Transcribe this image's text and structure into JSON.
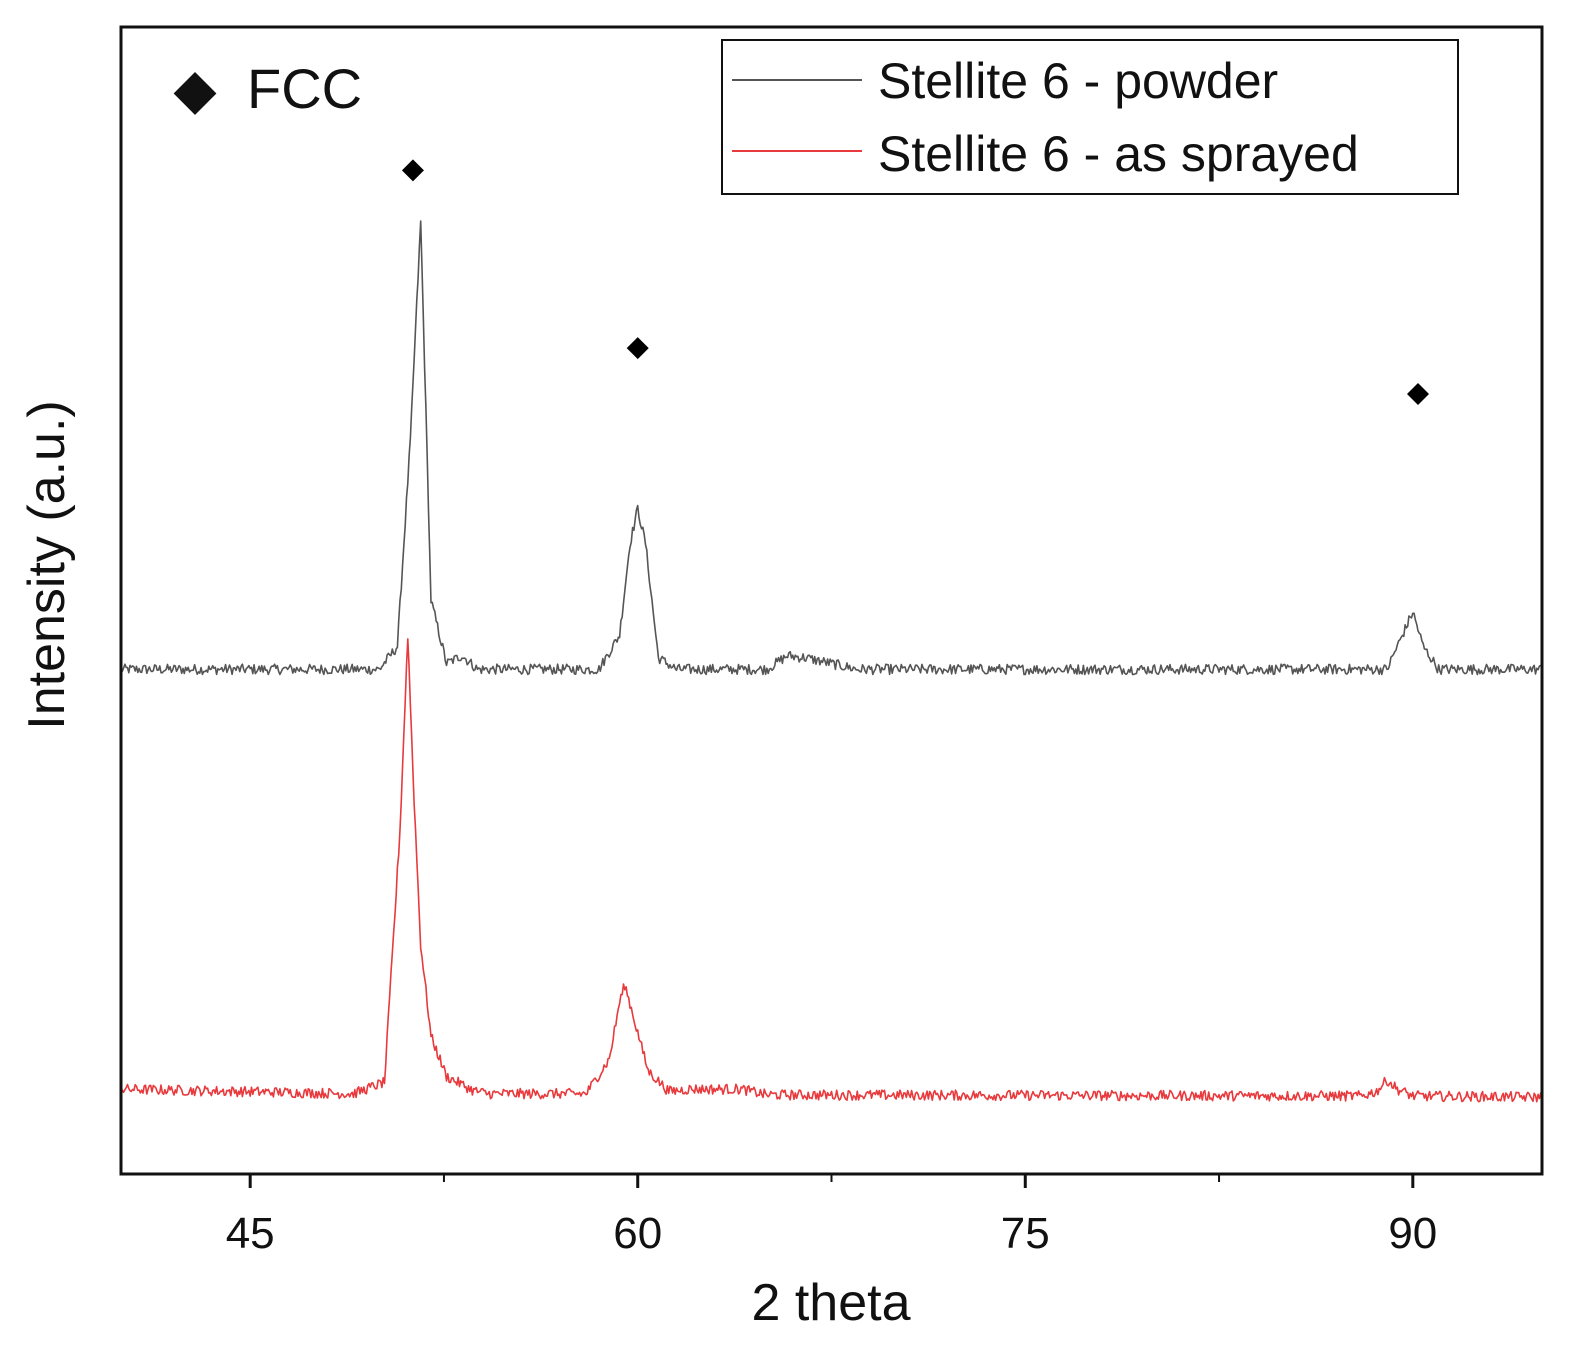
{
  "chart_data": {
    "type": "line",
    "title": "",
    "xlabel": "2 theta",
    "ylabel": "Intensity (a.u.)",
    "xlim": [
      40,
      95
    ],
    "ylim": [
      0,
      1
    ],
    "x_ticks": [
      45,
      60,
      75,
      90
    ],
    "x_minor_ticks": [
      52.5,
      67.5,
      82.5
    ],
    "y_ticks_shown": false,
    "grid": false,
    "legend_position": "top-right",
    "series": [
      {
        "name": "Stellite 6 - powder",
        "color": "#555555",
        "baseline": 0.44,
        "x": [
          40,
          50.0,
          50.7,
          51.2,
          51.6,
          52.0,
          52.6,
          53.2,
          53.8,
          58.5,
          59.3,
          59.7,
          60.0,
          60.3,
          60.8,
          61.5,
          65.0,
          65.8,
          66.5,
          68.5,
          69.5,
          89.0,
          89.6,
          90.0,
          90.4,
          91.0,
          95
        ],
        "y": [
          0.44,
          0.44,
          0.46,
          0.64,
          0.83,
          0.5,
          0.445,
          0.452,
          0.44,
          0.44,
          0.47,
          0.55,
          0.58,
          0.55,
          0.45,
          0.44,
          0.44,
          0.452,
          0.45,
          0.44,
          0.44,
          0.44,
          0.47,
          0.49,
          0.46,
          0.44,
          0.44
        ]
      },
      {
        "name": "Stellite 6 - as sprayed",
        "color": "#e8393c",
        "baseline": 0.07,
        "x": [
          40,
          49.0,
          50.2,
          50.8,
          51.1,
          51.3,
          51.6,
          52.0,
          52.6,
          53.2,
          53.6,
          54.2,
          58.0,
          58.9,
          59.3,
          59.5,
          59.8,
          60.4,
          61.2,
          62.0,
          64.0,
          65.0,
          88.0,
          88.6,
          89.0,
          89.4,
          90.0,
          95
        ],
        "y": [
          0.074,
          0.07,
          0.08,
          0.3,
          0.47,
          0.35,
          0.2,
          0.12,
          0.085,
          0.078,
          0.073,
          0.07,
          0.07,
          0.1,
          0.15,
          0.165,
          0.14,
          0.09,
          0.072,
          0.074,
          0.074,
          0.069,
          0.068,
          0.072,
          0.082,
          0.074,
          0.068,
          0.067
        ]
      }
    ],
    "annotations": {
      "marker_label": "FCC",
      "marker_symbol": "◆",
      "peak_markers": [
        {
          "x": 51.3,
          "y": 0.875
        },
        {
          "x": 60.0,
          "y": 0.72
        },
        {
          "x": 90.2,
          "y": 0.68
        }
      ]
    }
  }
}
